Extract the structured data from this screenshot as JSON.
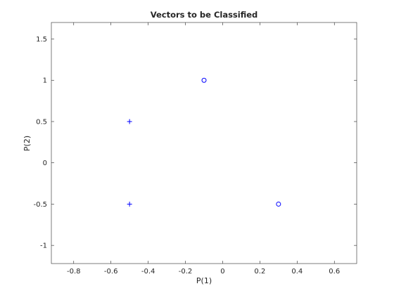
{
  "chart_data": {
    "type": "scatter",
    "title": "Vectors to be Classified",
    "xlabel": "P(1)",
    "ylabel": "P(2)",
    "xlim": [
      -0.92,
      0.72
    ],
    "ylim": [
      -1.22,
      1.7
    ],
    "xticks": [
      -0.8,
      -0.6,
      -0.4,
      -0.2,
      0,
      0.2,
      0.4,
      0.6
    ],
    "yticks": [
      -1,
      -0.5,
      0,
      0.5,
      1,
      1.5
    ],
    "xtick_labels": [
      "-0.8",
      "-0.6",
      "-0.4",
      "-0.2",
      "0",
      "0.2",
      "0.4",
      "0.6"
    ],
    "ytick_labels": [
      "-1",
      "-0.5",
      "0",
      "0.5",
      "1",
      "1.5"
    ],
    "grid": false,
    "marker_color": "#0000ff",
    "series": [
      {
        "marker": "plus",
        "points": [
          {
            "x": -0.5,
            "y": 0.5
          },
          {
            "x": -0.5,
            "y": -0.5
          }
        ]
      },
      {
        "marker": "circle",
        "points": [
          {
            "x": -0.1,
            "y": 1.0
          },
          {
            "x": 0.3,
            "y": -0.5
          }
        ]
      }
    ]
  }
}
